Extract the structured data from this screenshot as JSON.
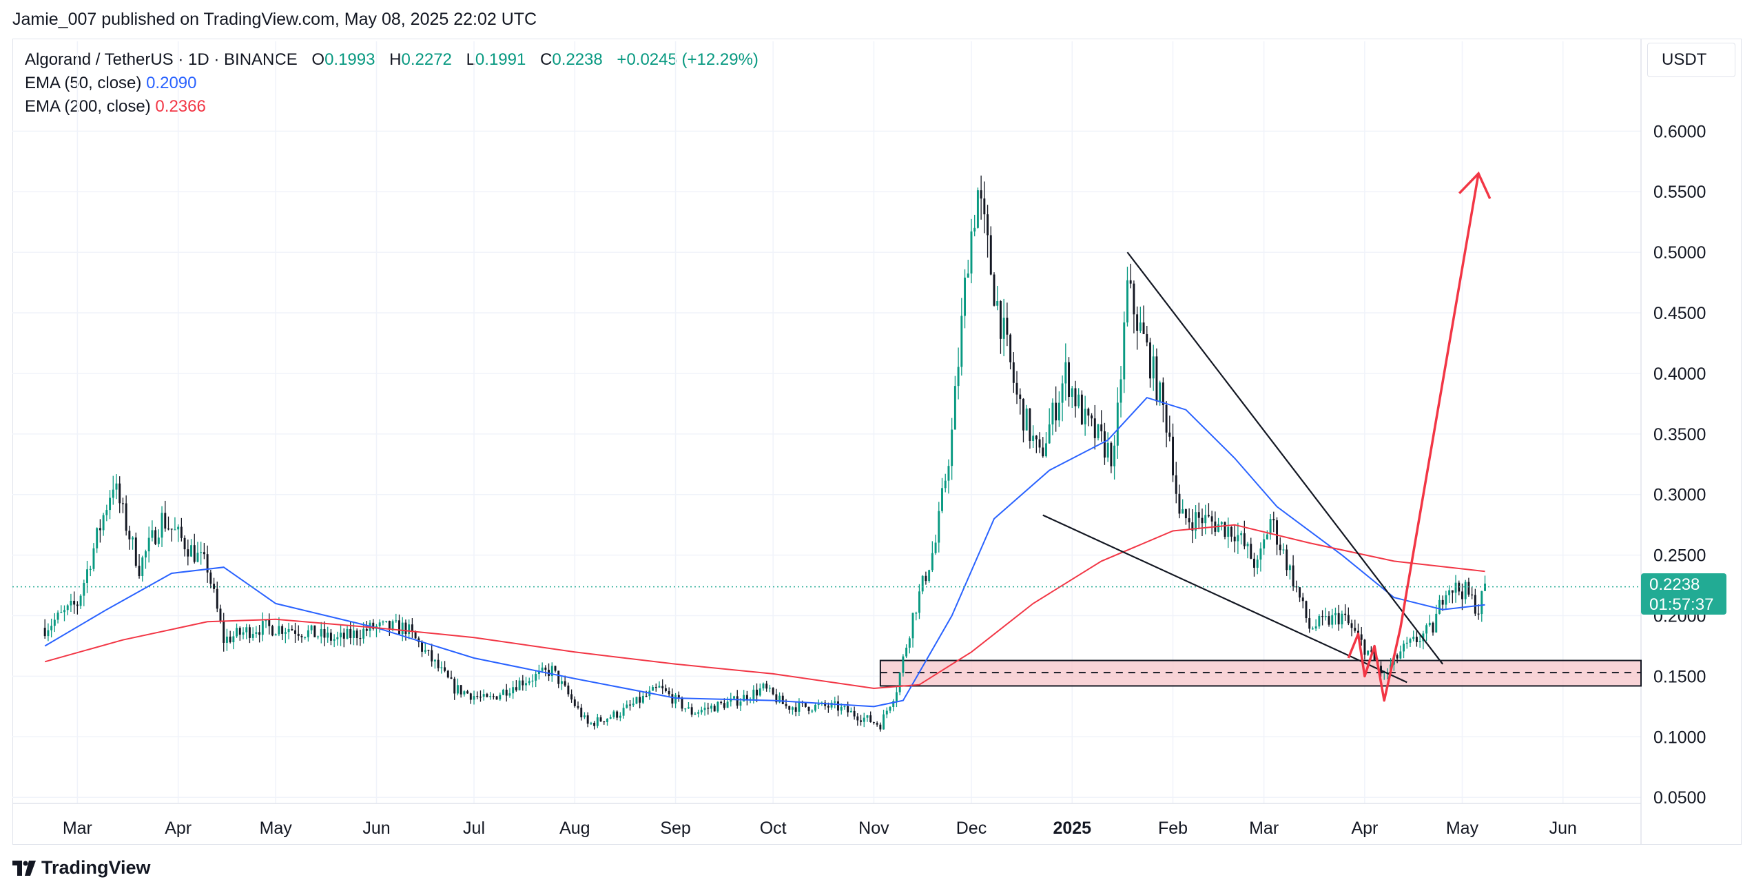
{
  "publisher": "Jamie_007 published on TradingView.com, May 08, 2025 22:02 UTC",
  "legend": {
    "symbol": "Algorand / TetherUS · 1D · BINANCE",
    "o_label": "O",
    "o_value": "0.1993",
    "h_label": "H",
    "h_value": "0.2272",
    "l_label": "L",
    "l_value": "0.1991",
    "c_label": "C",
    "c_value": "0.2238",
    "change": "+0.0245 (+12.29%)",
    "ema50_label": "EMA (50, close)",
    "ema50_value": "0.2090",
    "ema200_label": "EMA (200, close)",
    "ema200_value": "0.2366"
  },
  "unit": "USDT",
  "last_price": {
    "value": "0.2238",
    "countdown": "01:57:37"
  },
  "brand": "TradingView",
  "colors": {
    "up": "#089981",
    "down": "#131722",
    "ema50": "#2962ff",
    "ema200": "#f23645",
    "zone": "#f7c5c9",
    "arrow": "#f23645"
  },
  "chart_data": {
    "type": "candlestick",
    "ylim": [
      0.045,
      0.64
    ],
    "y_ticks": [
      "0.6000",
      "0.5500",
      "0.5000",
      "0.4500",
      "0.4000",
      "0.3500",
      "0.3000",
      "0.2500",
      "0.2000",
      "0.1500",
      "0.1000",
      "0.0500"
    ],
    "x_ticks": [
      "Mar",
      "Apr",
      "May",
      "Jun",
      "Jul",
      "Aug",
      "Sep",
      "Oct",
      "Nov",
      "Dec",
      "2025",
      "Feb",
      "Mar",
      "Apr",
      "May",
      "Jun"
    ],
    "price_path": [
      [
        "2024-02-20",
        0.19
      ],
      [
        "2024-03-01",
        0.21
      ],
      [
        "2024-03-12",
        0.31
      ],
      [
        "2024-03-20",
        0.24
      ],
      [
        "2024-03-27",
        0.28
      ],
      [
        "2024-04-10",
        0.24
      ],
      [
        "2024-04-15",
        0.18
      ],
      [
        "2024-04-25",
        0.19
      ],
      [
        "2024-05-05",
        0.19
      ],
      [
        "2024-05-20",
        0.18
      ],
      [
        "2024-05-31",
        0.19
      ],
      [
        "2024-06-10",
        0.19
      ],
      [
        "2024-06-25",
        0.14
      ],
      [
        "2024-07-05",
        0.13
      ],
      [
        "2024-07-15",
        0.145
      ],
      [
        "2024-07-25",
        0.155
      ],
      [
        "2024-08-05",
        0.11
      ],
      [
        "2024-08-15",
        0.12
      ],
      [
        "2024-08-27",
        0.14
      ],
      [
        "2024-09-06",
        0.12
      ],
      [
        "2024-09-20",
        0.13
      ],
      [
        "2024-09-28",
        0.14
      ],
      [
        "2024-10-05",
        0.125
      ],
      [
        "2024-10-20",
        0.125
      ],
      [
        "2024-11-03",
        0.11
      ],
      [
        "2024-11-08",
        0.14
      ],
      [
        "2024-11-13",
        0.2
      ],
      [
        "2024-11-20",
        0.26
      ],
      [
        "2024-11-25",
        0.35
      ],
      [
        "2024-11-30",
        0.5
      ],
      [
        "2024-12-03",
        0.55
      ],
      [
        "2024-12-08",
        0.47
      ],
      [
        "2024-12-15",
        0.38
      ],
      [
        "2024-12-22",
        0.33
      ],
      [
        "2024-12-30",
        0.4
      ],
      [
        "2025-01-05",
        0.36
      ],
      [
        "2025-01-14",
        0.33
      ],
      [
        "2025-01-18",
        0.47
      ],
      [
        "2025-01-25",
        0.41
      ],
      [
        "2025-01-31",
        0.35
      ],
      [
        "2025-02-03",
        0.28
      ],
      [
        "2025-02-10",
        0.28
      ],
      [
        "2025-02-20",
        0.27
      ],
      [
        "2025-02-27",
        0.24
      ],
      [
        "2025-03-03",
        0.28
      ],
      [
        "2025-03-10",
        0.23
      ],
      [
        "2025-03-15",
        0.19
      ],
      [
        "2025-03-25",
        0.2
      ],
      [
        "2025-04-02",
        0.17
      ],
      [
        "2025-04-07",
        0.15
      ],
      [
        "2025-04-12",
        0.17
      ],
      [
        "2025-04-22",
        0.19
      ],
      [
        "2025-04-26",
        0.225
      ],
      [
        "2025-05-02",
        0.22
      ],
      [
        "2025-05-06",
        0.205
      ],
      [
        "2025-05-08",
        0.2238
      ]
    ],
    "series": [
      {
        "name": "EMA (50, close)",
        "color": "#2962ff",
        "points": [
          [
            "2024-02-20",
            0.175
          ],
          [
            "2024-03-10",
            0.205
          ],
          [
            "2024-03-30",
            0.235
          ],
          [
            "2024-04-15",
            0.24
          ],
          [
            "2024-05-01",
            0.21
          ],
          [
            "2024-06-01",
            0.19
          ],
          [
            "2024-07-01",
            0.165
          ],
          [
            "2024-08-01",
            0.148
          ],
          [
            "2024-09-01",
            0.132
          ],
          [
            "2024-10-01",
            0.13
          ],
          [
            "2024-11-01",
            0.125
          ],
          [
            "2024-11-10",
            0.13
          ],
          [
            "2024-11-25",
            0.2
          ],
          [
            "2024-12-08",
            0.28
          ],
          [
            "2024-12-25",
            0.32
          ],
          [
            "2025-01-12",
            0.345
          ],
          [
            "2025-01-24",
            0.38
          ],
          [
            "2025-02-05",
            0.37
          ],
          [
            "2025-02-20",
            0.33
          ],
          [
            "2025-03-05",
            0.29
          ],
          [
            "2025-03-25",
            0.25
          ],
          [
            "2025-04-10",
            0.215
          ],
          [
            "2025-04-25",
            0.205
          ],
          [
            "2025-05-08",
            0.209
          ]
        ]
      },
      {
        "name": "EMA (200, close)",
        "color": "#f23645",
        "points": [
          [
            "2024-02-20",
            0.162
          ],
          [
            "2024-03-15",
            0.18
          ],
          [
            "2024-04-10",
            0.195
          ],
          [
            "2024-05-01",
            0.197
          ],
          [
            "2024-06-01",
            0.19
          ],
          [
            "2024-07-01",
            0.182
          ],
          [
            "2024-08-01",
            0.17
          ],
          [
            "2024-09-01",
            0.16
          ],
          [
            "2024-10-01",
            0.152
          ],
          [
            "2024-11-01",
            0.14
          ],
          [
            "2024-11-15",
            0.143
          ],
          [
            "2024-12-01",
            0.17
          ],
          [
            "2024-12-20",
            0.21
          ],
          [
            "2025-01-10",
            0.245
          ],
          [
            "2025-02-01",
            0.27
          ],
          [
            "2025-02-20",
            0.275
          ],
          [
            "2025-03-15",
            0.26
          ],
          [
            "2025-04-10",
            0.245
          ],
          [
            "2025-05-08",
            0.2366
          ]
        ]
      }
    ],
    "annotations": {
      "support_zone": {
        "from": "2024-11-03",
        "to_edge": true,
        "y_low": 0.142,
        "y_high": 0.163,
        "mid": 0.153
      },
      "wedge_upper": [
        [
          "2025-01-18",
          0.5
        ],
        [
          "2025-04-25",
          0.16
        ]
      ],
      "wedge_lower": [
        [
          "2024-12-23",
          0.283
        ],
        [
          "2025-04-14",
          0.145
        ]
      ],
      "projection_zigzag": [
        [
          "2025-03-27",
          0.165
        ],
        [
          "2025-03-30",
          0.185
        ],
        [
          "2025-04-01",
          0.15
        ],
        [
          "2025-04-04",
          0.175
        ],
        [
          "2025-04-07",
          0.13
        ],
        [
          "2025-04-12",
          0.19
        ]
      ],
      "target_arrow": [
        [
          "2025-04-12",
          0.19
        ],
        [
          "2025-05-06",
          0.565
        ]
      ]
    }
  }
}
